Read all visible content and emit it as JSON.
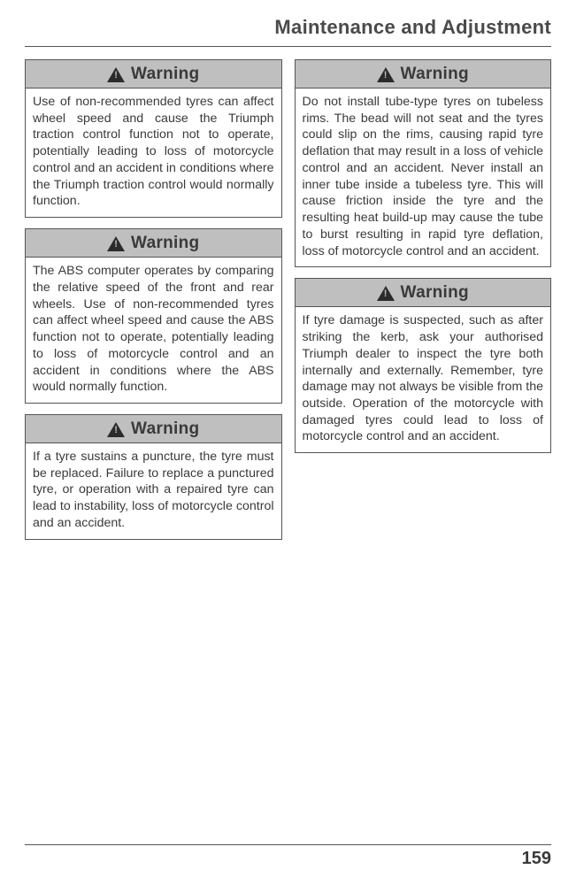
{
  "page": {
    "title": "Maintenance and Adjustment",
    "number": "159"
  },
  "warning_label": "Warning",
  "left": [
    {
      "body": "Use of non-recommended tyres can affect wheel speed and cause the Triumph traction control function not to operate, potentially leading to loss of motorcycle control and an accident in conditions where the Triumph traction control would normally function."
    },
    {
      "body": "The ABS computer operates by comparing the relative speed of the front and rear wheels. Use of non-recommended tyres can affect wheel speed and cause the ABS function not to operate, potentially leading to loss of motorcycle control and an accident in conditions where the ABS would normally function."
    },
    {
      "body": "If a tyre sustains a puncture, the tyre must be replaced. Failure to replace a punctured tyre, or operation with a repaired tyre can lead to instability, loss of motorcycle control and an accident."
    }
  ],
  "right": [
    {
      "body": "Do not install tube-type tyres on tubeless rims. The bead will not seat and the tyres could slip on the rims, causing rapid tyre deflation that may result in a loss of vehicle control and an accident. Never install an inner tube inside a tubeless tyre. This will cause friction inside the tyre and the resulting heat build-up may cause the tube to burst resulting in rapid tyre deflation, loss of motorcycle control and an accident."
    },
    {
      "body": "If tyre damage is suspected, such as after striking the kerb, ask your authorised Triumph dealer to inspect the tyre both internally and externally. Remember, tyre damage may not always be visible from the outside. Operation of the motorcycle with damaged tyres could lead to loss of motorcycle control and an accident."
    }
  ]
}
